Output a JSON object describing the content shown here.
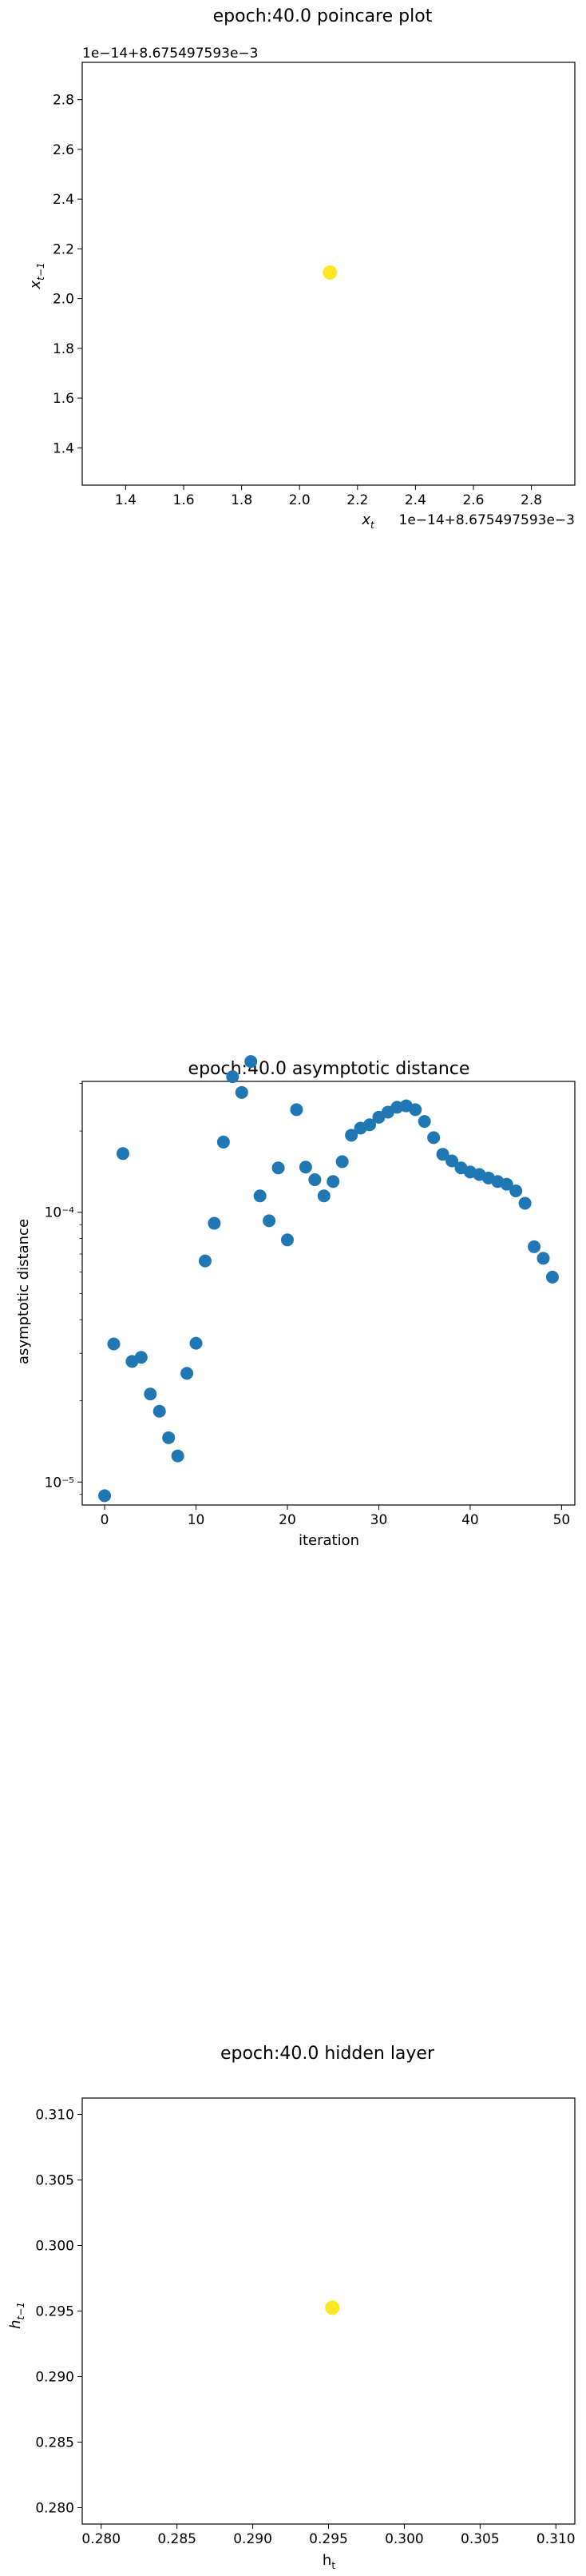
{
  "chart_data": [
    {
      "type": "scatter",
      "title": "epoch:40.0 poincare plot",
      "xlabel": "x_t",
      "ylabel": "x_{t-1}",
      "x_offset_label": "1e−14+8.675497593e−3",
      "y_offset_label": "1e−14+8.675497593e−3",
      "xlim": [
        1.25,
        2.95
      ],
      "ylim": [
        1.25,
        2.95
      ],
      "x_ticks": [
        1.4,
        1.6,
        1.8,
        2.0,
        2.2,
        2.4,
        2.6,
        2.8
      ],
      "x_tick_labels": [
        "1.4",
        "1.6",
        "1.8",
        "2.0",
        "2.2",
        "2.4",
        "2.6",
        "2.8"
      ],
      "y_ticks": [
        1.4,
        1.6,
        1.8,
        2.0,
        2.2,
        2.4,
        2.6,
        2.8
      ],
      "y_tick_labels": [
        "1.4",
        "1.6",
        "1.8",
        "2.0",
        "2.2",
        "2.4",
        "2.6",
        "2.8"
      ],
      "points": [
        {
          "x": 2.105,
          "y": 2.105
        }
      ],
      "point_color": "#fde725",
      "grid": false
    },
    {
      "type": "scatter",
      "title": "epoch:40.0 asymptotic distance",
      "xlabel": "iteration",
      "ylabel": "asymptotic distance",
      "yscale": "log",
      "xlim": [
        -2.45,
        51.45
      ],
      "ylim_log10": [
        -5.085,
        -3.515
      ],
      "x_ticks": [
        0,
        10,
        20,
        30,
        40,
        50
      ],
      "x_tick_labels": [
        "0",
        "10",
        "20",
        "30",
        "40",
        "50"
      ],
      "y_ticks_log10": [
        -5,
        -4
      ],
      "y_tick_labels": [
        "10⁻⁵",
        "10⁻⁴"
      ],
      "x": [
        0,
        1,
        2,
        3,
        4,
        5,
        6,
        7,
        8,
        9,
        10,
        11,
        12,
        13,
        14,
        15,
        16,
        17,
        18,
        19,
        20,
        21,
        22,
        23,
        24,
        25,
        26,
        27,
        28,
        29,
        30,
        31,
        32,
        33,
        34,
        35,
        36,
        37,
        38,
        39,
        40,
        41,
        42,
        43,
        44,
        45,
        46,
        47,
        48,
        49
      ],
      "y": [
        8.9e-06,
        3.25e-05,
        0.000165,
        2.8e-05,
        2.9e-05,
        2.12e-05,
        1.83e-05,
        1.46e-05,
        1.25e-05,
        2.53e-05,
        3.27e-05,
        6.6e-05,
        9.1e-05,
        0.000182,
        0.000318,
        0.000278,
        0.000362,
        0.000115,
        9.3e-05,
        0.000146,
        7.9e-05,
        0.00024,
        0.000147,
        0.000132,
        0.000115,
        0.00013,
        0.000154,
        0.000193,
        0.000205,
        0.000211,
        0.000225,
        0.000235,
        0.000245,
        0.000248,
        0.00024,
        0.000217,
        0.000189,
        0.000164,
        0.000155,
        0.000146,
        0.000141,
        0.000138,
        0.000134,
        0.00013,
        0.000127,
        0.00012,
        0.000108,
        7.45e-05,
        6.75e-05,
        5.75e-05
      ],
      "point_color": "#1f77b4",
      "grid": false
    },
    {
      "type": "scatter",
      "title": "epoch:40.0 hidden layer",
      "xlabel": "h_t",
      "ylabel": "h_{t-1}",
      "xlim": [
        0.27875,
        0.31125
      ],
      "ylim": [
        0.27875,
        0.31125
      ],
      "x_ticks": [
        0.28,
        0.285,
        0.29,
        0.295,
        0.3,
        0.305,
        0.31
      ],
      "x_tick_labels": [
        "0.280",
        "0.285",
        "0.290",
        "0.295",
        "0.300",
        "0.305",
        "0.310"
      ],
      "y_ticks": [
        0.28,
        0.285,
        0.29,
        0.295,
        0.3,
        0.305,
        0.31
      ],
      "y_tick_labels": [
        "0.280",
        "0.285",
        "0.290",
        "0.295",
        "0.300",
        "0.305",
        "0.310"
      ],
      "points": [
        {
          "x": 0.29525,
          "y": 0.29525
        }
      ],
      "point_color": "#fde725",
      "grid": false
    }
  ]
}
